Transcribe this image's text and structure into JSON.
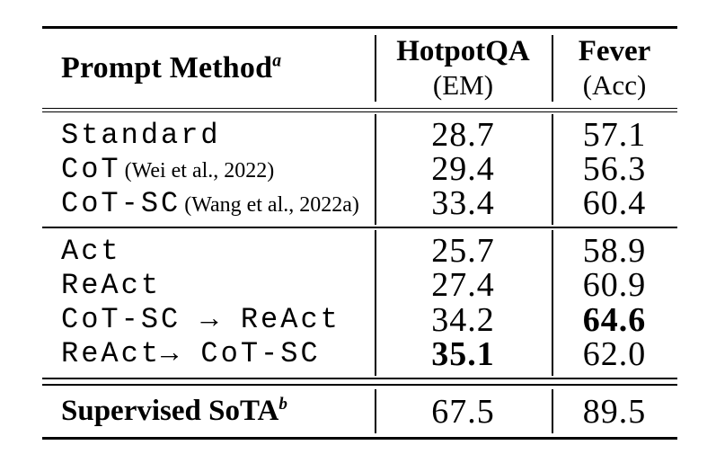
{
  "colors": {
    "background": "#ffffff",
    "text": "#000000",
    "rules": "#000000"
  },
  "table": {
    "header": {
      "method_label": "Prompt Method",
      "method_superscript": "a",
      "col2_title": "HotpotQA",
      "col2_unit": "(EM)",
      "col3_title": "Fever",
      "col3_unit": "(Acc)"
    },
    "group1": {
      "rows": [
        {
          "method": "Standard",
          "citation": "",
          "hotpotqa": "28.7",
          "fever": "57.1"
        },
        {
          "method": "CoT",
          "citation": "(Wei et al., 2022)",
          "hotpotqa": "29.4",
          "fever": "56.3"
        },
        {
          "method": "CoT-SC",
          "citation": "(Wang et al., 2022a)",
          "hotpotqa": "33.4",
          "fever": "60.4"
        }
      ]
    },
    "group2": {
      "rows": [
        {
          "method": "Act",
          "citation": "",
          "hotpotqa": "25.7",
          "fever": "58.9"
        },
        {
          "method": "ReAct",
          "citation": "",
          "hotpotqa": "27.4",
          "fever": "60.9"
        },
        {
          "method": "CoT-SC → ReAct",
          "citation": "",
          "hotpotqa": "34.2",
          "fever": "64.6",
          "bold": "fever"
        },
        {
          "method": "ReAct→ CoT-SC",
          "citation": "",
          "hotpotqa": "35.1",
          "fever": "62.0",
          "bold": "hotpotqa"
        }
      ]
    },
    "footer": {
      "label": "Supervised SoTA",
      "superscript": "b",
      "hotpotqa": "67.5",
      "fever": "89.5"
    }
  }
}
